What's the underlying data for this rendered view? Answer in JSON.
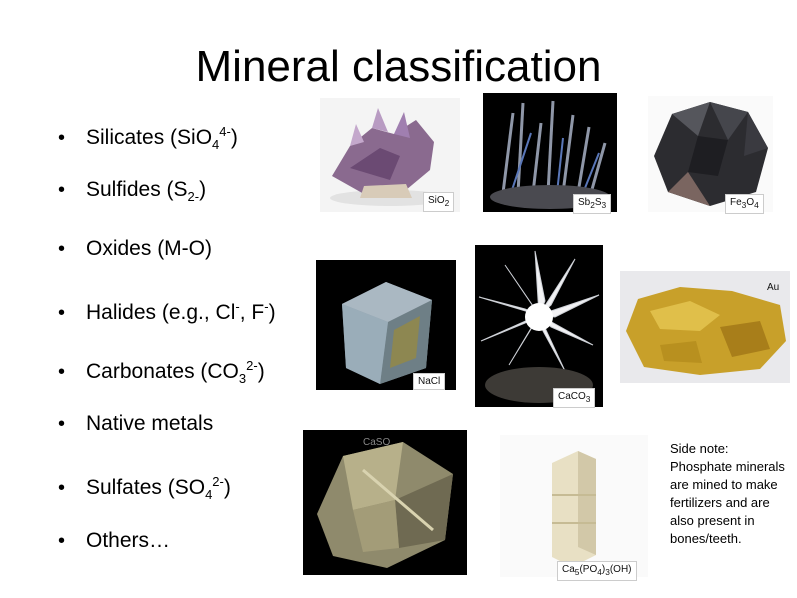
{
  "title": "Mineral classification",
  "bullets": {
    "silicates": {
      "prefix": "Silicates (SiO",
      "sub": "4",
      "sup": "4-",
      "suffix": ")"
    },
    "sulfides": {
      "prefix": "Sulfides (S",
      "sub": "2-",
      "suffix": ")"
    },
    "oxides": {
      "text": "Oxides (M-O)"
    },
    "halides": {
      "prefix": "Halides (e.g., Cl",
      "sup1": "-",
      "mid": ", F",
      "sup2": "-",
      "suffix": ")"
    },
    "carbonates": {
      "prefix": "Carbonates (CO",
      "sub": "3",
      "sup": "2-",
      "suffix": ")"
    },
    "native_metals": {
      "text": "Native metals"
    },
    "sulfates": {
      "prefix": "Sulfates (SO",
      "sub": "4",
      "sup": "2-",
      "suffix": ")"
    },
    "others": {
      "text": "Others…"
    }
  },
  "bullet_glyph": "•",
  "labels": {
    "sio2": {
      "a": "SiO",
      "b": "2"
    },
    "sb2s3": {
      "a": "Sb",
      "b": "2",
      "c": "S",
      "d": "3"
    },
    "fe3o4": {
      "a": "Fe",
      "b": "3",
      "c": "O",
      "d": "4"
    },
    "au": "Au",
    "nacl": "NaCl",
    "caco3": {
      "a": "CaCO",
      "b": "3"
    },
    "caso4": "CaSO",
    "apatite": {
      "a": "Ca",
      "b": "5",
      "c": "(PO",
      "d": "4",
      "e": ")",
      "f": "3",
      "g": "(OH)"
    }
  },
  "side_note": "Side note: Phosphate minerals are mined to make fertilizers and are also present in bones/teeth."
}
